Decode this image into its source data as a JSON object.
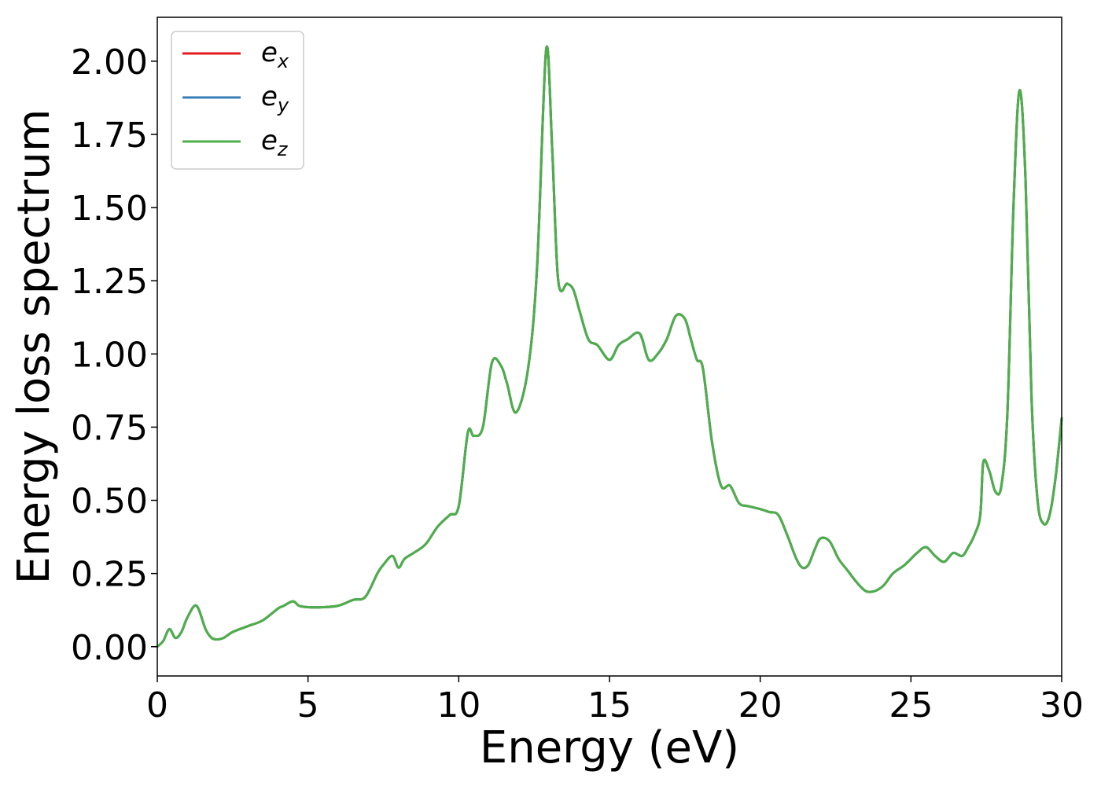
{
  "chart_data": {
    "type": "line",
    "xlabel": "Energy (eV)",
    "ylabel": "Energy loss spectrum",
    "xlim": [
      0,
      30
    ],
    "ylim": [
      -0.1,
      2.15
    ],
    "xticks": [
      0,
      5,
      10,
      15,
      20,
      25,
      30
    ],
    "xtick_labels": [
      "0",
      "5",
      "10",
      "15",
      "20",
      "25",
      "30"
    ],
    "yticks": [
      0,
      0.25,
      0.5,
      0.75,
      1.0,
      1.25,
      1.5,
      1.75,
      2.0
    ],
    "ytick_labels": [
      "0.00",
      "0.25",
      "0.50",
      "0.75",
      "1.00",
      "1.25",
      "1.50",
      "1.75",
      "2.00"
    ],
    "grid": false,
    "legend_position": "top-left",
    "x": [
      0,
      0.2,
      0.4,
      0.6,
      0.8,
      1.0,
      1.3,
      1.6,
      1.8,
      2.0,
      2.2,
      2.5,
      3.0,
      3.5,
      4.0,
      4.2,
      4.5,
      4.7,
      5.0,
      5.5,
      6.0,
      6.5,
      6.9,
      7.3,
      7.5,
      7.8,
      8.0,
      8.2,
      8.5,
      8.9,
      9.3,
      9.7,
      10.0,
      10.3,
      10.5,
      10.8,
      11.1,
      11.4,
      11.6,
      11.9,
      12.3,
      12.6,
      12.9,
      13.1,
      13.3,
      13.6,
      13.8,
      14.0,
      14.3,
      14.6,
      15.0,
      15.3,
      15.6,
      16.0,
      16.3,
      16.6,
      16.9,
      17.2,
      17.5,
      17.7,
      17.9,
      18.1,
      18.4,
      18.7,
      19.0,
      19.3,
      19.6,
      20.0,
      20.3,
      20.6,
      20.9,
      21.2,
      21.4,
      21.6,
      21.8,
      22.0,
      22.3,
      22.6,
      22.9,
      23.2,
      23.5,
      23.8,
      24.1,
      24.4,
      24.8,
      25.2,
      25.5,
      25.8,
      26.1,
      26.4,
      26.7,
      26.9,
      27.1,
      27.3,
      27.4,
      27.6,
      27.8,
      28.0,
      28.2,
      28.4,
      28.6,
      28.8,
      29.0,
      29.2,
      29.4,
      29.6,
      29.8,
      30.0
    ],
    "series": [
      {
        "name": "e_x",
        "label_base": "e",
        "label_sub": "x",
        "color": "#e41a1c",
        "y": [
          0.0,
          0.02,
          0.06,
          0.03,
          0.05,
          0.1,
          0.14,
          0.06,
          0.03,
          0.025,
          0.03,
          0.05,
          0.07,
          0.09,
          0.13,
          0.14,
          0.155,
          0.14,
          0.135,
          0.135,
          0.14,
          0.16,
          0.17,
          0.25,
          0.28,
          0.31,
          0.27,
          0.3,
          0.32,
          0.35,
          0.41,
          0.45,
          0.48,
          0.73,
          0.72,
          0.75,
          0.97,
          0.96,
          0.9,
          0.8,
          0.95,
          1.3,
          2.04,
          1.7,
          1.25,
          1.24,
          1.22,
          1.15,
          1.05,
          1.03,
          0.98,
          1.03,
          1.05,
          1.07,
          0.98,
          1.0,
          1.05,
          1.13,
          1.12,
          1.05,
          0.98,
          0.95,
          0.7,
          0.55,
          0.55,
          0.49,
          0.48,
          0.47,
          0.46,
          0.45,
          0.38,
          0.3,
          0.27,
          0.28,
          0.33,
          0.37,
          0.36,
          0.3,
          0.26,
          0.22,
          0.19,
          0.19,
          0.21,
          0.25,
          0.28,
          0.32,
          0.34,
          0.31,
          0.29,
          0.32,
          0.31,
          0.34,
          0.38,
          0.45,
          0.63,
          0.6,
          0.53,
          0.55,
          0.8,
          1.5,
          1.9,
          1.6,
          0.85,
          0.5,
          0.42,
          0.45,
          0.58,
          0.78
        ]
      },
      {
        "name": "e_y",
        "label_base": "e",
        "label_sub": "y",
        "color": "#377eb8",
        "y": [
          0.0,
          0.02,
          0.06,
          0.03,
          0.05,
          0.1,
          0.14,
          0.06,
          0.03,
          0.025,
          0.03,
          0.05,
          0.07,
          0.09,
          0.13,
          0.14,
          0.155,
          0.14,
          0.135,
          0.135,
          0.14,
          0.16,
          0.17,
          0.25,
          0.28,
          0.31,
          0.27,
          0.3,
          0.32,
          0.35,
          0.41,
          0.45,
          0.48,
          0.73,
          0.72,
          0.75,
          0.97,
          0.96,
          0.9,
          0.8,
          0.95,
          1.3,
          2.04,
          1.7,
          1.25,
          1.24,
          1.22,
          1.15,
          1.05,
          1.03,
          0.98,
          1.03,
          1.05,
          1.07,
          0.98,
          1.0,
          1.05,
          1.13,
          1.12,
          1.05,
          0.98,
          0.95,
          0.7,
          0.55,
          0.55,
          0.49,
          0.48,
          0.47,
          0.46,
          0.45,
          0.38,
          0.3,
          0.27,
          0.28,
          0.33,
          0.37,
          0.36,
          0.3,
          0.26,
          0.22,
          0.19,
          0.19,
          0.21,
          0.25,
          0.28,
          0.32,
          0.34,
          0.31,
          0.29,
          0.32,
          0.31,
          0.34,
          0.38,
          0.45,
          0.63,
          0.6,
          0.53,
          0.55,
          0.8,
          1.5,
          1.9,
          1.6,
          0.85,
          0.5,
          0.42,
          0.45,
          0.58,
          0.78
        ]
      },
      {
        "name": "e_z",
        "label_base": "e",
        "label_sub": "z",
        "color": "#4daf4a",
        "y": [
          0.0,
          0.02,
          0.06,
          0.03,
          0.05,
          0.1,
          0.14,
          0.06,
          0.03,
          0.025,
          0.03,
          0.05,
          0.07,
          0.09,
          0.13,
          0.14,
          0.155,
          0.14,
          0.135,
          0.135,
          0.14,
          0.16,
          0.17,
          0.25,
          0.28,
          0.31,
          0.27,
          0.3,
          0.32,
          0.35,
          0.41,
          0.45,
          0.48,
          0.73,
          0.72,
          0.75,
          0.97,
          0.96,
          0.9,
          0.8,
          0.95,
          1.3,
          2.04,
          1.7,
          1.25,
          1.24,
          1.22,
          1.15,
          1.05,
          1.03,
          0.98,
          1.03,
          1.05,
          1.07,
          0.98,
          1.0,
          1.05,
          1.13,
          1.12,
          1.05,
          0.98,
          0.95,
          0.7,
          0.55,
          0.55,
          0.49,
          0.48,
          0.47,
          0.46,
          0.45,
          0.38,
          0.3,
          0.27,
          0.28,
          0.33,
          0.37,
          0.36,
          0.3,
          0.26,
          0.22,
          0.19,
          0.19,
          0.21,
          0.25,
          0.28,
          0.32,
          0.34,
          0.31,
          0.29,
          0.32,
          0.31,
          0.34,
          0.38,
          0.45,
          0.63,
          0.6,
          0.53,
          0.55,
          0.8,
          1.5,
          1.9,
          1.6,
          0.85,
          0.5,
          0.42,
          0.45,
          0.58,
          0.78
        ]
      }
    ]
  }
}
